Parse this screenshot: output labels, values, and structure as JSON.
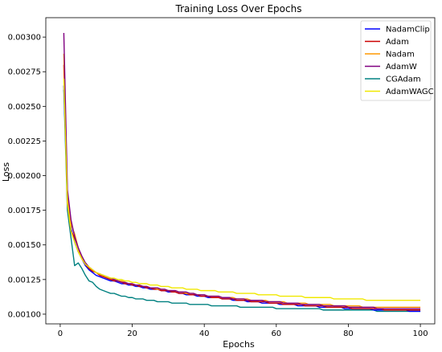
{
  "chart_data": {
    "type": "line",
    "title": "Training Loss Over Epochs",
    "xlabel": "Epochs",
    "ylabel": "Loss",
    "xlim": [
      -4,
      104
    ],
    "ylim": [
      0.00093,
      0.00314
    ],
    "xticks": [
      0,
      20,
      40,
      60,
      80,
      100
    ],
    "yticks": [
      0.001,
      0.00125,
      0.0015,
      0.00175,
      0.002,
      0.00225,
      0.0025,
      0.00275,
      0.003
    ],
    "ytick_labels": [
      "0.00100",
      "0.00125",
      "0.00150",
      "0.00175",
      "0.00200",
      "0.00225",
      "0.00250",
      "0.00275",
      "0.00300"
    ],
    "grid": false,
    "legend_position": "top-right",
    "x": [
      1,
      2,
      3,
      4,
      5,
      6,
      7,
      8,
      9,
      10,
      11,
      12,
      13,
      14,
      15,
      16,
      17,
      18,
      19,
      20,
      21,
      22,
      23,
      24,
      25,
      26,
      27,
      28,
      29,
      30,
      31,
      32,
      33,
      34,
      35,
      36,
      37,
      38,
      39,
      40,
      41,
      42,
      43,
      44,
      45,
      46,
      47,
      48,
      49,
      50,
      51,
      52,
      53,
      54,
      55,
      56,
      57,
      58,
      59,
      60,
      61,
      62,
      63,
      64,
      65,
      66,
      67,
      68,
      69,
      70,
      71,
      72,
      73,
      74,
      75,
      76,
      77,
      78,
      79,
      80,
      81,
      82,
      83,
      84,
      85,
      86,
      87,
      88,
      89,
      90,
      91,
      92,
      93,
      94,
      95,
      96,
      97,
      98,
      99,
      100
    ],
    "series": [
      {
        "name": "NadamClip",
        "color": "#0000ff",
        "values": [
          0.00265,
          0.00185,
          0.00162,
          0.00152,
          0.00145,
          0.0014,
          0.00135,
          0.00132,
          0.0013,
          0.00128,
          0.00127,
          0.00126,
          0.00125,
          0.00124,
          0.00124,
          0.00123,
          0.00122,
          0.00122,
          0.00121,
          0.00121,
          0.0012,
          0.0012,
          0.00119,
          0.00119,
          0.00118,
          0.00118,
          0.00118,
          0.00117,
          0.00117,
          0.00116,
          0.00116,
          0.00116,
          0.00115,
          0.00115,
          0.00114,
          0.00114,
          0.00114,
          0.00113,
          0.00113,
          0.00113,
          0.00112,
          0.00112,
          0.00112,
          0.00112,
          0.00111,
          0.00111,
          0.00111,
          0.0011,
          0.0011,
          0.0011,
          0.0011,
          0.00109,
          0.00109,
          0.00109,
          0.00109,
          0.00108,
          0.00108,
          0.00108,
          0.00108,
          0.00108,
          0.00107,
          0.00107,
          0.00107,
          0.00107,
          0.00107,
          0.00106,
          0.00106,
          0.00106,
          0.00106,
          0.00106,
          0.00106,
          0.00105,
          0.00105,
          0.00105,
          0.00105,
          0.00105,
          0.00105,
          0.00105,
          0.00104,
          0.00104,
          0.00104,
          0.00104,
          0.00104,
          0.00104,
          0.00104,
          0.00104,
          0.00103,
          0.00103,
          0.00103,
          0.00103,
          0.00103,
          0.00103,
          0.00103,
          0.00103,
          0.00103,
          0.00103,
          0.00102,
          0.00102,
          0.00102,
          0.00102
        ]
      },
      {
        "name": "Adam",
        "color": "#cc0000",
        "values": [
          0.0028,
          0.0018,
          0.0016,
          0.00155,
          0.00148,
          0.0014,
          0.00136,
          0.00133,
          0.00131,
          0.0013,
          0.00128,
          0.00127,
          0.00126,
          0.00125,
          0.00124,
          0.00124,
          0.00123,
          0.00122,
          0.00122,
          0.00121,
          0.00121,
          0.0012,
          0.0012,
          0.00119,
          0.00119,
          0.00118,
          0.00118,
          0.00117,
          0.00117,
          0.00117,
          0.00116,
          0.00116,
          0.00115,
          0.00115,
          0.00115,
          0.00114,
          0.00114,
          0.00114,
          0.00113,
          0.00113,
          0.00113,
          0.00112,
          0.00112,
          0.00112,
          0.00111,
          0.00111,
          0.00111,
          0.00111,
          0.0011,
          0.0011,
          0.0011,
          0.0011,
          0.00109,
          0.00109,
          0.00109,
          0.00109,
          0.00109,
          0.00108,
          0.00108,
          0.00108,
          0.00108,
          0.00107,
          0.00107,
          0.00107,
          0.00107,
          0.00107,
          0.00107,
          0.00106,
          0.00106,
          0.00106,
          0.00106,
          0.00106,
          0.00106,
          0.00105,
          0.00105,
          0.00105,
          0.00105,
          0.00105,
          0.00105,
          0.00105,
          0.00104,
          0.00104,
          0.00104,
          0.00104,
          0.00104,
          0.00104,
          0.00104,
          0.00104,
          0.00104,
          0.00103,
          0.00103,
          0.00103,
          0.00103,
          0.00103,
          0.00103,
          0.00103,
          0.00103,
          0.00103,
          0.00103,
          0.00103
        ]
      },
      {
        "name": "Nadam",
        "color": "#ff9900",
        "values": [
          0.00288,
          0.00185,
          0.00165,
          0.00158,
          0.00148,
          0.0014,
          0.00137,
          0.00134,
          0.00132,
          0.0013,
          0.00129,
          0.00128,
          0.00127,
          0.00126,
          0.00125,
          0.00124,
          0.00124,
          0.00123,
          0.00122,
          0.00122,
          0.00121,
          0.00121,
          0.0012,
          0.0012,
          0.00119,
          0.00119,
          0.00118,
          0.00118,
          0.00118,
          0.00117,
          0.00117,
          0.00117,
          0.00116,
          0.00116,
          0.00115,
          0.00115,
          0.00115,
          0.00114,
          0.00114,
          0.00114,
          0.00113,
          0.00113,
          0.00113,
          0.00113,
          0.00112,
          0.00112,
          0.00112,
          0.00112,
          0.00111,
          0.00111,
          0.00111,
          0.00111,
          0.0011,
          0.0011,
          0.0011,
          0.0011,
          0.0011,
          0.00109,
          0.00109,
          0.00109,
          0.00109,
          0.00109,
          0.00108,
          0.00108,
          0.00108,
          0.00108,
          0.00108,
          0.00108,
          0.00107,
          0.00107,
          0.00107,
          0.00107,
          0.00107,
          0.00107,
          0.00107,
          0.00106,
          0.00106,
          0.00106,
          0.00106,
          0.00106,
          0.00106,
          0.00106,
          0.00106,
          0.00105,
          0.00105,
          0.00105,
          0.00105,
          0.00105,
          0.00105,
          0.00105,
          0.00105,
          0.00105,
          0.00105,
          0.00105,
          0.00105,
          0.00105,
          0.00105,
          0.00105,
          0.00105,
          0.00105
        ]
      },
      {
        "name": "AdamW",
        "color": "#800080",
        "values": [
          0.00303,
          0.0019,
          0.00168,
          0.00156,
          0.00148,
          0.00142,
          0.00137,
          0.00134,
          0.00132,
          0.0013,
          0.00129,
          0.00128,
          0.00127,
          0.00126,
          0.00125,
          0.00124,
          0.00123,
          0.00123,
          0.00122,
          0.00122,
          0.00121,
          0.00121,
          0.0012,
          0.0012,
          0.00119,
          0.00119,
          0.00119,
          0.00118,
          0.00118,
          0.00117,
          0.00117,
          0.00117,
          0.00116,
          0.00116,
          0.00116,
          0.00115,
          0.00115,
          0.00114,
          0.00114,
          0.00114,
          0.00113,
          0.00113,
          0.00113,
          0.00113,
          0.00112,
          0.00112,
          0.00112,
          0.00111,
          0.00111,
          0.00111,
          0.00111,
          0.0011,
          0.0011,
          0.0011,
          0.0011,
          0.0011,
          0.00109,
          0.00109,
          0.00109,
          0.00109,
          0.00109,
          0.00108,
          0.00108,
          0.00108,
          0.00108,
          0.00108,
          0.00107,
          0.00107,
          0.00107,
          0.00107,
          0.00107,
          0.00107,
          0.00106,
          0.00106,
          0.00106,
          0.00106,
          0.00106,
          0.00106,
          0.00106,
          0.00105,
          0.00105,
          0.00105,
          0.00105,
          0.00105,
          0.00105,
          0.00105,
          0.00105,
          0.00104,
          0.00104,
          0.00104,
          0.00104,
          0.00104,
          0.00104,
          0.00104,
          0.00104,
          0.00104,
          0.00104,
          0.00104,
          0.00104,
          0.00104
        ]
      },
      {
        "name": "CGAdam",
        "color": "#008080",
        "values": [
          0.00262,
          0.00175,
          0.00155,
          0.00135,
          0.00137,
          0.00133,
          0.00128,
          0.00124,
          0.00123,
          0.0012,
          0.00118,
          0.00117,
          0.00116,
          0.00115,
          0.00115,
          0.00114,
          0.00113,
          0.00113,
          0.00112,
          0.00112,
          0.00111,
          0.00111,
          0.00111,
          0.0011,
          0.0011,
          0.0011,
          0.00109,
          0.00109,
          0.00109,
          0.00109,
          0.00108,
          0.00108,
          0.00108,
          0.00108,
          0.00108,
          0.00107,
          0.00107,
          0.00107,
          0.00107,
          0.00107,
          0.00107,
          0.00106,
          0.00106,
          0.00106,
          0.00106,
          0.00106,
          0.00106,
          0.00106,
          0.00106,
          0.00105,
          0.00105,
          0.00105,
          0.00105,
          0.00105,
          0.00105,
          0.00105,
          0.00105,
          0.00105,
          0.00105,
          0.00104,
          0.00104,
          0.00104,
          0.00104,
          0.00104,
          0.00104,
          0.00104,
          0.00104,
          0.00104,
          0.00104,
          0.00104,
          0.00104,
          0.00104,
          0.00103,
          0.00103,
          0.00103,
          0.00103,
          0.00103,
          0.00103,
          0.00103,
          0.00103,
          0.00103,
          0.00103,
          0.00103,
          0.00103,
          0.00103,
          0.00103,
          0.00103,
          0.00102,
          0.00102,
          0.00102,
          0.00102,
          0.00102,
          0.00102,
          0.00102,
          0.00102,
          0.00102,
          0.00102,
          0.00102,
          0.00102,
          0.00102
        ]
      },
      {
        "name": "AdamWAGC",
        "color": "#f0e800",
        "values": [
          0.0027,
          0.0018,
          0.0016,
          0.00152,
          0.00145,
          0.0014,
          0.00136,
          0.00134,
          0.00132,
          0.0013,
          0.00129,
          0.00128,
          0.00127,
          0.00126,
          0.00126,
          0.00125,
          0.00125,
          0.00124,
          0.00124,
          0.00123,
          0.00123,
          0.00122,
          0.00122,
          0.00122,
          0.00121,
          0.00121,
          0.00121,
          0.0012,
          0.0012,
          0.0012,
          0.00119,
          0.00119,
          0.00119,
          0.00119,
          0.00118,
          0.00118,
          0.00118,
          0.00118,
          0.00117,
          0.00117,
          0.00117,
          0.00117,
          0.00117,
          0.00116,
          0.00116,
          0.00116,
          0.00116,
          0.00116,
          0.00115,
          0.00115,
          0.00115,
          0.00115,
          0.00115,
          0.00115,
          0.00114,
          0.00114,
          0.00114,
          0.00114,
          0.00114,
          0.00114,
          0.00113,
          0.00113,
          0.00113,
          0.00113,
          0.00113,
          0.00113,
          0.00113,
          0.00112,
          0.00112,
          0.00112,
          0.00112,
          0.00112,
          0.00112,
          0.00112,
          0.00112,
          0.00111,
          0.00111,
          0.00111,
          0.00111,
          0.00111,
          0.00111,
          0.00111,
          0.00111,
          0.00111,
          0.0011,
          0.0011,
          0.0011,
          0.0011,
          0.0011,
          0.0011,
          0.0011,
          0.0011,
          0.0011,
          0.0011,
          0.0011,
          0.0011,
          0.0011,
          0.0011,
          0.0011,
          0.0011
        ]
      }
    ]
  }
}
